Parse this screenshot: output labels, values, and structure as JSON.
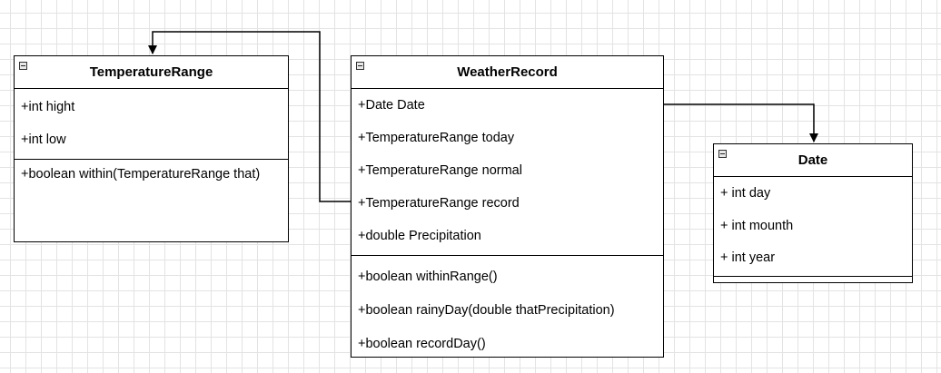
{
  "classes": {
    "temperature_range": {
      "name": "TemperatureRange",
      "attributes": [
        "+int hight",
        "+int low"
      ],
      "methods": [
        "+boolean within(TemperatureRange that)"
      ]
    },
    "weather_record": {
      "name": "WeatherRecord",
      "attributes": [
        "+Date Date",
        "+TemperatureRange today",
        "+TemperatureRange normal",
        "+TemperatureRange record",
        "+double Precipitation"
      ],
      "methods": [
        "+boolean withinRange()",
        "+boolean rainyDay(double thatPrecipitation)",
        "+boolean recordDay()"
      ]
    },
    "date": {
      "name": "Date",
      "attributes": [
        "+ int day",
        "+ int mounth",
        "+ int year"
      ],
      "methods": []
    }
  },
  "colors": {
    "stroke": "#000000",
    "grid": "#e3e3e3",
    "fill": "#ffffff"
  }
}
